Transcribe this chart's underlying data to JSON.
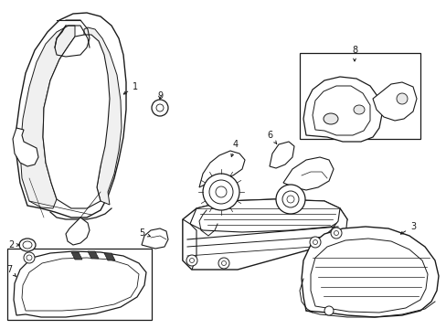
{
  "background_color": "#ffffff",
  "line_color": "#1a1a1a",
  "fig_width": 4.89,
  "fig_height": 3.6,
  "dpi": 100,
  "border_color": "#333333",
  "label_fontsize": 7,
  "arrow_lw": 0.7,
  "arrow_scale": 5
}
